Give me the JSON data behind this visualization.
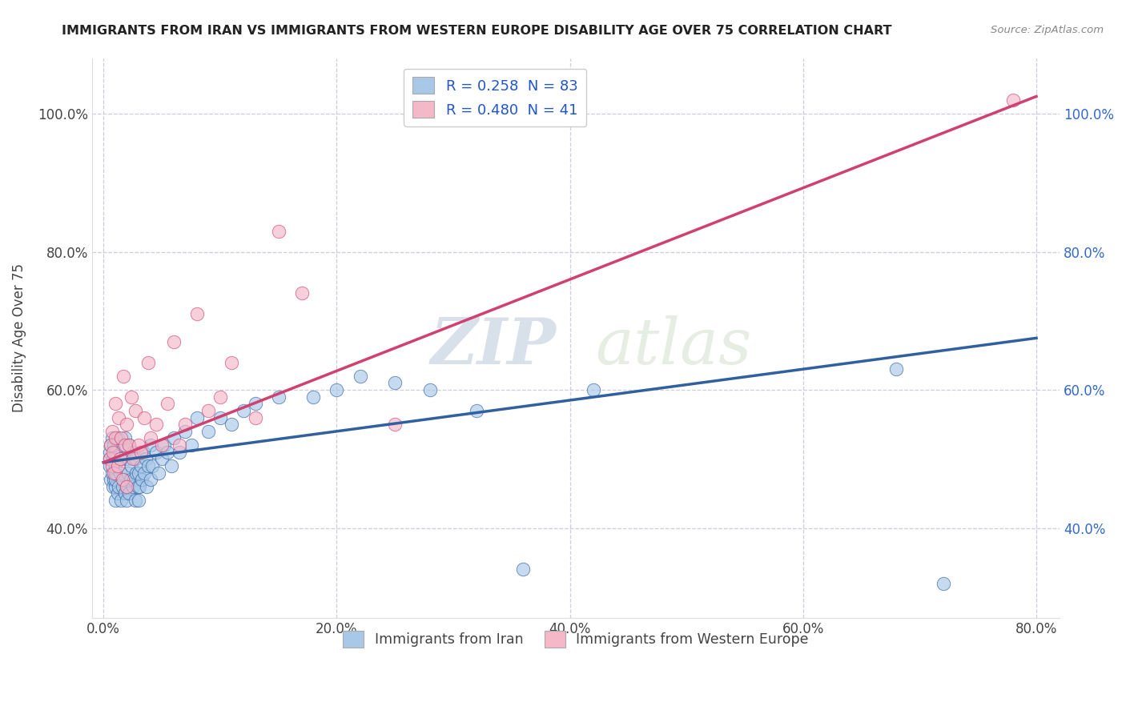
{
  "title": "IMMIGRANTS FROM IRAN VS IMMIGRANTS FROM WESTERN EUROPE DISABILITY AGE OVER 75 CORRELATION CHART",
  "source": "Source: ZipAtlas.com",
  "ylabel": "Disability Age Over 75",
  "legend_labels": [
    "Immigrants from Iran",
    "Immigrants from Western Europe"
  ],
  "legend_r": [
    "R = 0.258",
    "R = 0.480"
  ],
  "legend_n": [
    "N = 83",
    "N = 41"
  ],
  "color_iran": "#A8C8E8",
  "color_west": "#F4B8C8",
  "line_color_iran": "#3060A0",
  "line_color_west": "#D04070",
  "background_color": "#FFFFFF",
  "grid_color": "#C8C8D8",
  "watermark_zip": "ZIP",
  "watermark_atlas": "atlas",
  "xmin": -0.01,
  "xmax": 0.82,
  "ymin": 0.27,
  "ymax": 1.08,
  "x_tick_labels": [
    "0.0%",
    "20.0%",
    "40.0%",
    "60.0%",
    "80.0%"
  ],
  "x_tick_values": [
    0.0,
    0.2,
    0.4,
    0.6,
    0.8
  ],
  "y_tick_labels": [
    "40.0%",
    "60.0%",
    "80.0%",
    "100.0%"
  ],
  "y_tick_values": [
    0.4,
    0.6,
    0.8,
    1.0
  ],
  "iran_line_x0": 0.0,
  "iran_line_y0": 0.495,
  "iran_line_x1": 0.8,
  "iran_line_y1": 0.675,
  "west_line_x0": 0.0,
  "west_line_y0": 0.495,
  "west_line_x1": 0.8,
  "west_line_y1": 1.025,
  "iran_x": [
    0.005,
    0.005,
    0.005,
    0.006,
    0.006,
    0.007,
    0.007,
    0.008,
    0.008,
    0.009,
    0.009,
    0.01,
    0.01,
    0.01,
    0.01,
    0.01,
    0.01,
    0.012,
    0.012,
    0.013,
    0.014,
    0.015,
    0.015,
    0.016,
    0.016,
    0.017,
    0.018,
    0.018,
    0.02,
    0.02,
    0.02,
    0.021,
    0.022,
    0.022,
    0.023,
    0.024,
    0.025,
    0.025,
    0.026,
    0.027,
    0.027,
    0.028,
    0.029,
    0.03,
    0.03,
    0.031,
    0.032,
    0.033,
    0.034,
    0.035,
    0.036,
    0.037,
    0.038,
    0.04,
    0.04,
    0.042,
    0.045,
    0.047,
    0.05,
    0.052,
    0.055,
    0.058,
    0.06,
    0.065,
    0.07,
    0.075,
    0.08,
    0.09,
    0.1,
    0.11,
    0.12,
    0.13,
    0.15,
    0.18,
    0.2,
    0.22,
    0.25,
    0.28,
    0.32,
    0.36,
    0.42,
    0.68,
    0.72
  ],
  "iran_y": [
    0.49,
    0.5,
    0.51,
    0.47,
    0.52,
    0.48,
    0.53,
    0.46,
    0.5,
    0.47,
    0.52,
    0.44,
    0.46,
    0.47,
    0.48,
    0.49,
    0.51,
    0.45,
    0.53,
    0.46,
    0.48,
    0.44,
    0.5,
    0.46,
    0.52,
    0.47,
    0.45,
    0.53,
    0.44,
    0.46,
    0.5,
    0.48,
    0.45,
    0.52,
    0.47,
    0.49,
    0.46,
    0.51,
    0.47,
    0.44,
    0.5,
    0.48,
    0.46,
    0.44,
    0.48,
    0.46,
    0.49,
    0.47,
    0.51,
    0.48,
    0.5,
    0.46,
    0.49,
    0.47,
    0.52,
    0.49,
    0.51,
    0.48,
    0.5,
    0.52,
    0.51,
    0.49,
    0.53,
    0.51,
    0.54,
    0.52,
    0.56,
    0.54,
    0.56,
    0.55,
    0.57,
    0.58,
    0.59,
    0.59,
    0.6,
    0.62,
    0.61,
    0.6,
    0.57,
    0.34,
    0.6,
    0.63,
    0.32
  ],
  "west_x": [
    0.005,
    0.006,
    0.007,
    0.007,
    0.008,
    0.009,
    0.01,
    0.01,
    0.012,
    0.013,
    0.014,
    0.015,
    0.016,
    0.017,
    0.018,
    0.02,
    0.02,
    0.022,
    0.024,
    0.025,
    0.027,
    0.03,
    0.032,
    0.035,
    0.038,
    0.04,
    0.045,
    0.05,
    0.055,
    0.06,
    0.065,
    0.07,
    0.08,
    0.09,
    0.1,
    0.11,
    0.13,
    0.15,
    0.17,
    0.25,
    0.78
  ],
  "west_y": [
    0.5,
    0.52,
    0.49,
    0.54,
    0.51,
    0.48,
    0.53,
    0.58,
    0.49,
    0.56,
    0.5,
    0.53,
    0.47,
    0.62,
    0.52,
    0.46,
    0.55,
    0.52,
    0.59,
    0.5,
    0.57,
    0.52,
    0.51,
    0.56,
    0.64,
    0.53,
    0.55,
    0.52,
    0.58,
    0.67,
    0.52,
    0.55,
    0.71,
    0.57,
    0.59,
    0.64,
    0.56,
    0.83,
    0.74,
    0.55,
    1.02
  ]
}
